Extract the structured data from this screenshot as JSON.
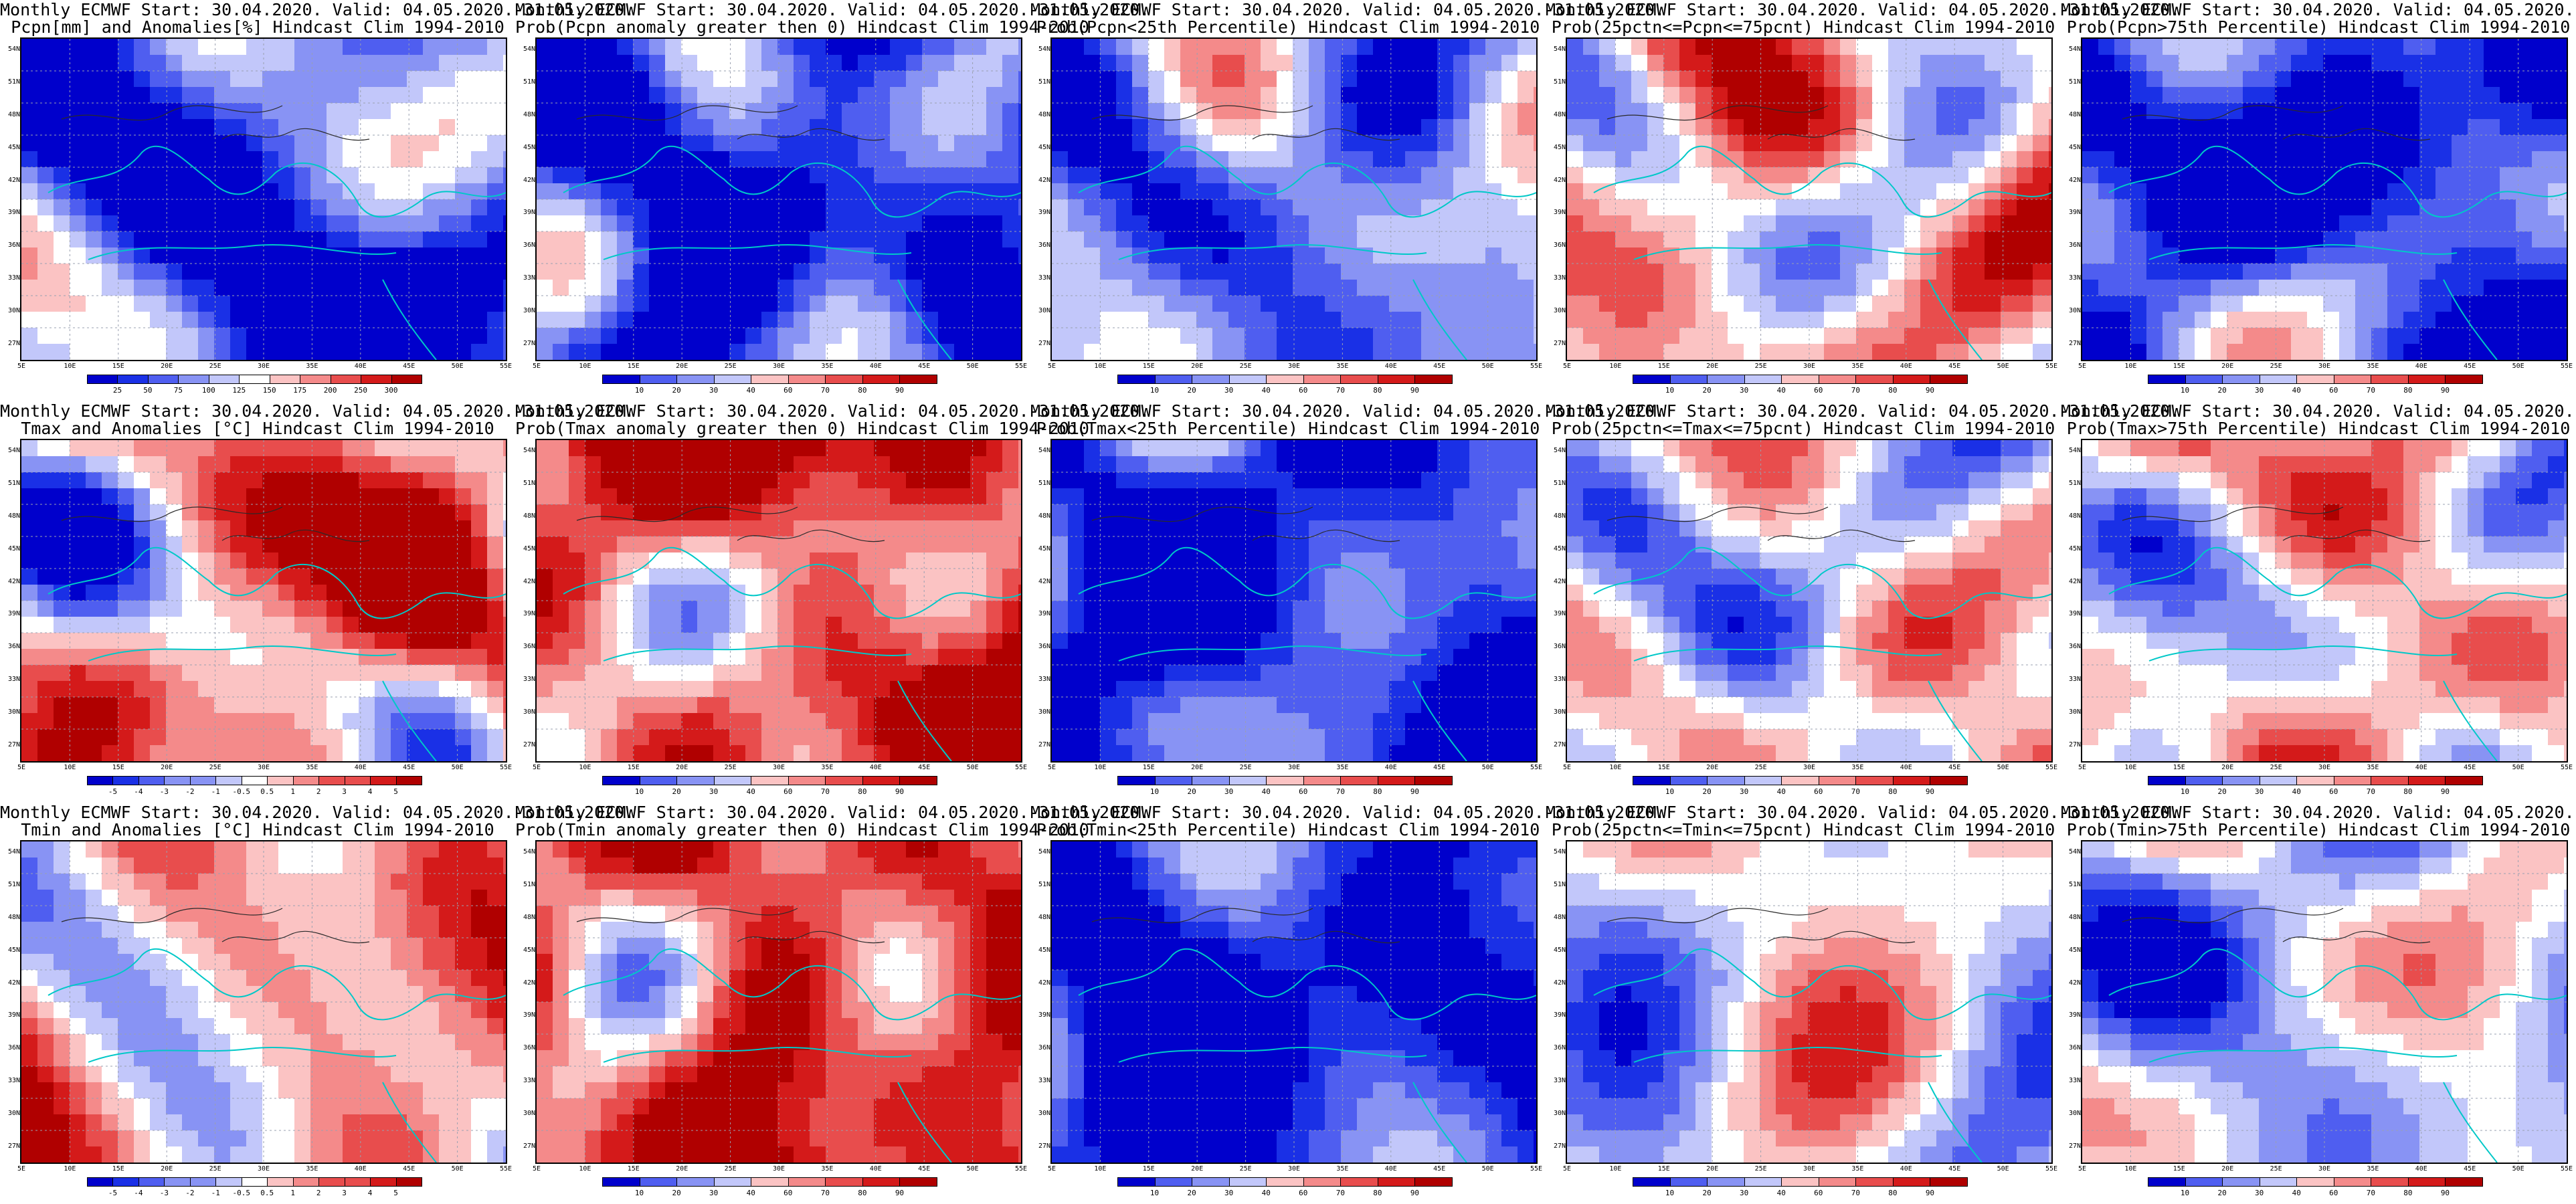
{
  "title_line1": "Monthly ECMWF Start: 30.04.2020. Valid: 04.05.2020.-31.05.2020.",
  "lat_labels": [
    "54N",
    "51N",
    "48N",
    "45N",
    "42N",
    "39N",
    "36N",
    "33N",
    "30N",
    "27N"
  ],
  "lon_labels": [
    "5E",
    "10E",
    "15E",
    "20E",
    "25E",
    "30E",
    "35E",
    "40E",
    "45E",
    "50E",
    "55E"
  ],
  "colors": {
    "land_contour": "#2a2a2a",
    "coast": "#00c8c8",
    "grid": "#9aa0b0",
    "prob_palette": [
      "#0000cc",
      "#1a30e6",
      "#4f5ef0",
      "#8893f4",
      "#c2c7fa",
      "#ffffff",
      "#fbc3c3",
      "#f48a8a",
      "#e84d4d",
      "#d41a1a",
      "#b00000"
    ],
    "anom_palette": [
      "#0000cc",
      "#4f5ef0",
      "#8893f4",
      "#c2c7fa",
      "#ffffff",
      "#fbc3c3",
      "#f48a8a",
      "#e84d4d",
      "#d41a1a",
      "#b00000"
    ]
  },
  "panels": [
    {
      "id": "pcpn-anom",
      "title2": "Pcpn[mm] and Anomalies[%] Hindcast Clim 1994-2010",
      "bias": -0.7,
      "seed": 11,
      "cbar": [
        "25",
        "50",
        "75",
        "100",
        "125",
        "150",
        "175",
        "200",
        "250",
        "300"
      ]
    },
    {
      "id": "pcpn-prob0",
      "title2": "Prob(Pcpn anomaly greater then 0) Hindcast Clim 1994-2010",
      "bias": -0.8,
      "seed": 12,
      "cbar": [
        "10",
        "20",
        "30",
        "40",
        "60",
        "70",
        "80",
        "90"
      ]
    },
    {
      "id": "pcpn-p25",
      "title2": "Prob(Pcpn<25th Percentile) Hindcast Clim 1994-2010",
      "bias": -0.4,
      "seed": 13,
      "cbar": [
        "10",
        "20",
        "30",
        "40",
        "60",
        "70",
        "80",
        "90"
      ]
    },
    {
      "id": "pcpn-mid",
      "title2": "Prob(25pctn<=Pcpn<=75pcnt) Hindcast Clim 1994-2010",
      "bias": 0.2,
      "seed": 14,
      "cbar": [
        "10",
        "20",
        "30",
        "40",
        "60",
        "70",
        "80",
        "90"
      ]
    },
    {
      "id": "pcpn-p75",
      "title2": "Prob(Pcpn>75th Percentile) Hindcast Clim 1994-2010",
      "bias": -0.8,
      "seed": 15,
      "cbar": [
        "10",
        "20",
        "30",
        "40",
        "60",
        "70",
        "80",
        "90"
      ]
    },
    {
      "id": "tmax-anom",
      "title2": "Tmax and Anomalies [°C] Hindcast Clim 1994-2010",
      "bias": 0.3,
      "seed": 21,
      "cbar": [
        "-5",
        "-4",
        "-3",
        "-2",
        "-1",
        "-0.5",
        "0.5",
        "1",
        "2",
        "3",
        "4",
        "5"
      ]
    },
    {
      "id": "tmax-prob0",
      "title2": "Prob(Tmax anomaly greater then 0) Hindcast Clim 1994-2010",
      "bias": 0.7,
      "seed": 22,
      "cbar": [
        "10",
        "20",
        "30",
        "40",
        "60",
        "70",
        "80",
        "90"
      ]
    },
    {
      "id": "tmax-p25",
      "title2": "Prob(Tmax<25th Percentile) Hindcast Clim 1994-2010",
      "bias": -0.85,
      "seed": 23,
      "cbar": [
        "10",
        "20",
        "30",
        "40",
        "60",
        "70",
        "80",
        "90"
      ]
    },
    {
      "id": "tmax-mid",
      "title2": "Prob(25pctn<=Tmax<=75pcnt) Hindcast Clim 1994-2010",
      "bias": 0.0,
      "seed": 24,
      "cbar": [
        "10",
        "20",
        "30",
        "40",
        "60",
        "70",
        "80",
        "90"
      ]
    },
    {
      "id": "tmax-p75",
      "title2": "Prob(Tmax>75th Percentile) Hindcast Clim 1994-2010",
      "bias": 0.1,
      "seed": 25,
      "cbar": [
        "10",
        "20",
        "30",
        "40",
        "60",
        "70",
        "80",
        "90"
      ]
    },
    {
      "id": "tmin-anom",
      "title2": "Tmin and Anomalies [°C] Hindcast Clim 1994-2010",
      "bias": 0.25,
      "seed": 31,
      "cbar": [
        "-5",
        "-4",
        "-3",
        "-2",
        "-1",
        "-0.5",
        "0.5",
        "1",
        "2",
        "3",
        "4",
        "5"
      ]
    },
    {
      "id": "tmin-prob0",
      "title2": "Prob(Tmin anomaly greater then 0) Hindcast Clim 1994-2010",
      "bias": 0.65,
      "seed": 32,
      "cbar": [
        "10",
        "20",
        "30",
        "40",
        "60",
        "70",
        "80",
        "90"
      ]
    },
    {
      "id": "tmin-p25",
      "title2": "Prob(Tmin<25th Percentile) Hindcast Clim 1994-2010",
      "bias": -0.9,
      "seed": 33,
      "cbar": [
        "10",
        "20",
        "30",
        "40",
        "60",
        "70",
        "80",
        "90"
      ]
    },
    {
      "id": "tmin-mid",
      "title2": "Prob(25pctn<=Tmin<=75pcnt) Hindcast Clim 1994-2010",
      "bias": 0.0,
      "seed": 34,
      "cbar": [
        "10",
        "20",
        "30",
        "40",
        "60",
        "70",
        "80",
        "90"
      ]
    },
    {
      "id": "tmin-p75",
      "title2": "Prob(Tmin>75th Percentile) Hindcast Clim 1994-2010",
      "bias": -0.2,
      "seed": 35,
      "cbar": [
        "10",
        "20",
        "30",
        "40",
        "60",
        "70",
        "80",
        "90"
      ]
    }
  ]
}
